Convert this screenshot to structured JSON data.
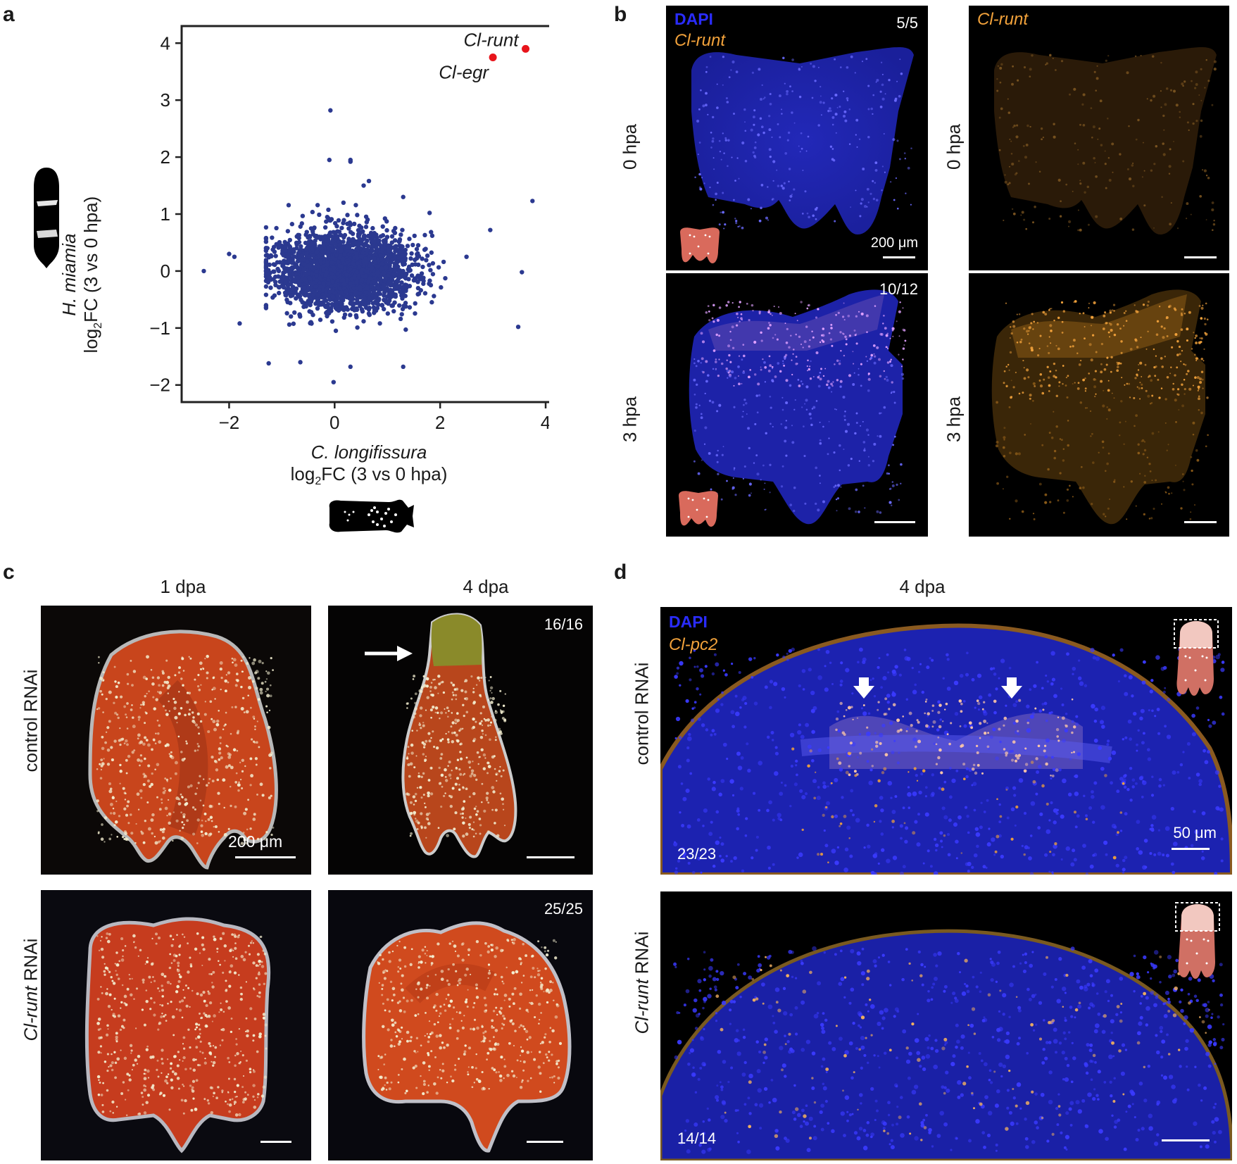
{
  "panels": {
    "a": "a",
    "b": "b",
    "c": "c",
    "d": "d"
  },
  "panel_a": {
    "ylabel_species": "H. miamia",
    "ylabel_metric": "log",
    "ylabel_sub": "2",
    "ylabel_rest": "FC (3 vs 0 hpa)",
    "xlabel_species": "C. longifissura",
    "xlabel_metric": "log",
    "xlabel_sub": "2",
    "xlabel_rest": "FC (3 vs 0 hpa)",
    "annotations": [
      "Cl-runt",
      "Cl-egr"
    ],
    "xticks": [
      "−2",
      "0",
      "2",
      "4"
    ],
    "yticks": [
      "−2",
      "−1",
      "0",
      "1",
      "2",
      "3",
      "4"
    ]
  },
  "chart_data": {
    "type": "scatter",
    "xlim": [
      -2.9,
      4.2
    ],
    "ylim": [
      -2.3,
      4.3
    ],
    "xticks": [
      -2,
      0,
      2,
      4
    ],
    "yticks": [
      -2,
      -1,
      0,
      1,
      2,
      3,
      4
    ],
    "point_color": "#2b3990",
    "highlight_color": "#e8141b",
    "highlighted": [
      {
        "label": "Cl-runt",
        "x": 3.62,
        "y": 3.9
      },
      {
        "label": "Cl-egr",
        "x": 3.0,
        "y": 3.75
      }
    ],
    "outliers": [
      {
        "x": -0.08,
        "y": 2.82
      },
      {
        "x": 3.75,
        "y": 1.23
      },
      {
        "x": 2.95,
        "y": 0.72
      },
      {
        "x": 3.55,
        "y": -0.02
      },
      {
        "x": 3.48,
        "y": -0.98
      },
      {
        "x": -2.48,
        "y": 0.0
      },
      {
        "x": -0.02,
        "y": -1.95
      },
      {
        "x": 1.3,
        "y": -1.68
      },
      {
        "x": -1.25,
        "y": -1.62
      },
      {
        "x": -0.65,
        "y": -1.6
      },
      {
        "x": 0.3,
        "y": -1.68
      },
      {
        "x": -1.8,
        "y": -0.92
      },
      {
        "x": 0.3,
        "y": 1.95
      },
      {
        "x": 0.3,
        "y": 1.92
      },
      {
        "x": -0.1,
        "y": 1.95
      },
      {
        "x": 0.65,
        "y": 1.58
      },
      {
        "x": 0.55,
        "y": 1.5
      },
      {
        "x": 1.3,
        "y": 1.3
      },
      {
        "x": 1.8,
        "y": 1.02
      },
      {
        "x": -1.9,
        "y": 0.25
      },
      {
        "x": -2.0,
        "y": 0.3
      },
      {
        "x": 2.5,
        "y": 0.25
      },
      {
        "x": 1.85,
        "y": 0.62
      },
      {
        "x": -1.3,
        "y": -0.65
      }
    ],
    "cluster": {
      "center_x": 0.2,
      "center_y": 0.0,
      "spread_x": 0.55,
      "spread_y": 0.3,
      "count": 2600
    }
  },
  "panel_b": {
    "dapi": "DAPI",
    "gene": "Cl-runt",
    "gene_right": "Cl-runt",
    "rows": [
      "0 hpa",
      "3 hpa"
    ],
    "counts": [
      "5/5",
      "10/12"
    ],
    "scale": "200 μm"
  },
  "panel_c": {
    "cols": [
      "1 dpa",
      "4 dpa"
    ],
    "rows": [
      {
        "gene": "control",
        "suffix": " RNAi"
      },
      {
        "gene": "Cl-runt",
        "suffix": " RNAi"
      }
    ],
    "counts": [
      "16/16",
      "25/25"
    ],
    "scale": "200 μm"
  },
  "panel_d": {
    "col": "4 dpa",
    "dapi": "DAPI",
    "gene": "Cl-pc2",
    "rows": [
      {
        "gene": "control",
        "suffix": " RNAi"
      },
      {
        "gene": "Cl-runt",
        "suffix": " RNAi"
      }
    ],
    "counts": [
      "23/23",
      "14/14"
    ],
    "scale": "50 μm"
  }
}
